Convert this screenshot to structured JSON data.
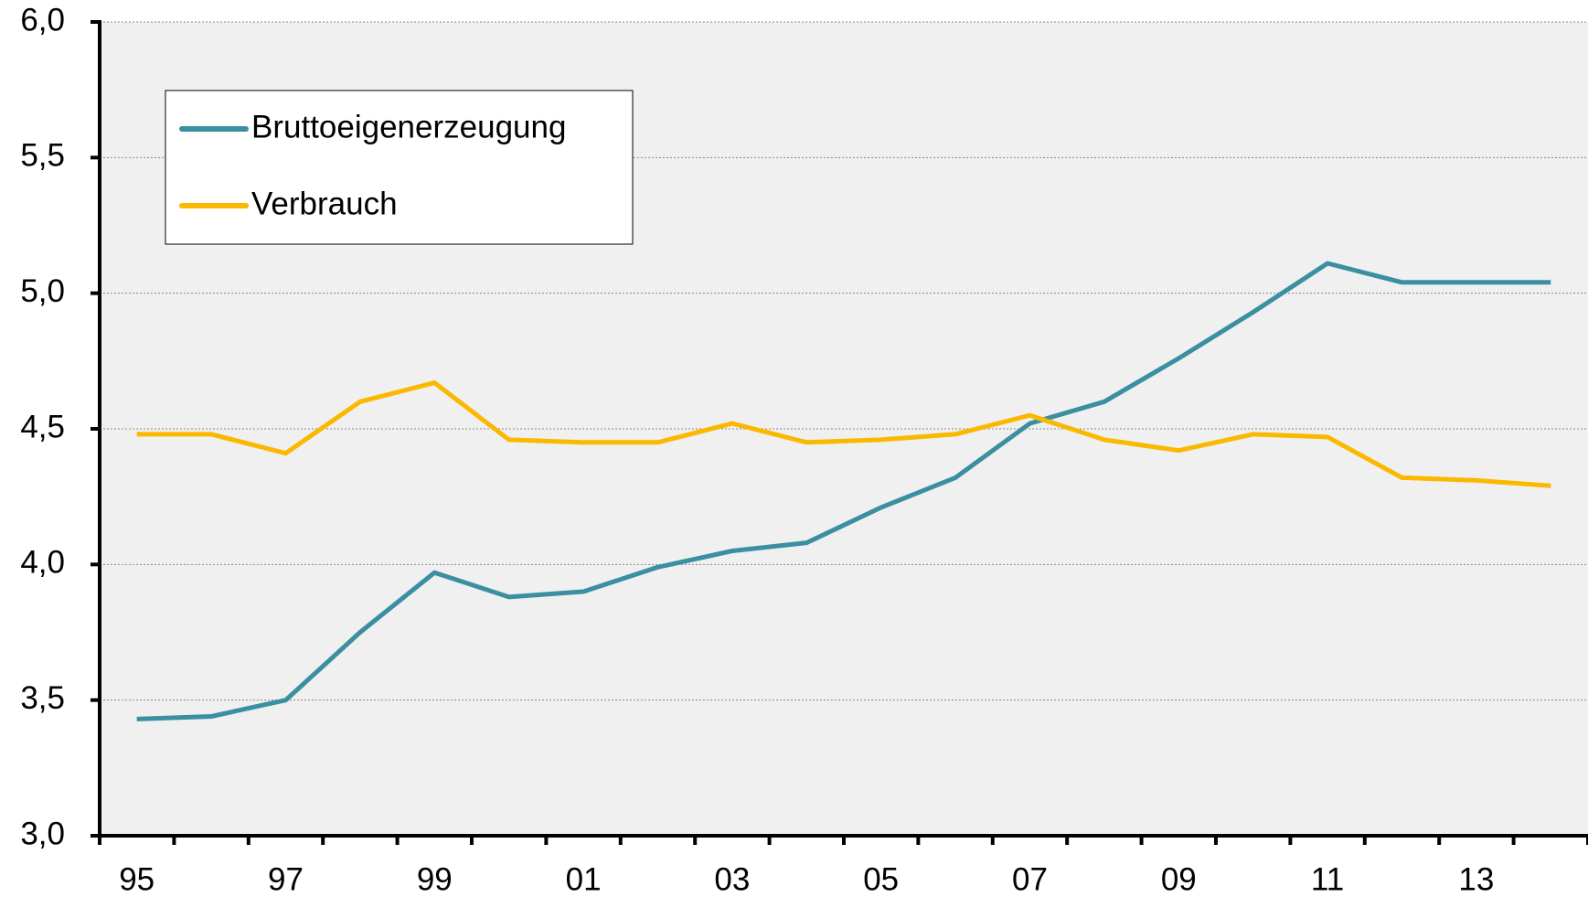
{
  "chart_data": {
    "type": "line",
    "categories": [
      "95",
      null,
      "97",
      null,
      "99",
      null,
      "01",
      null,
      "03",
      null,
      "05",
      null,
      "07",
      null,
      "09",
      null,
      "11",
      null,
      "13",
      null
    ],
    "series": [
      {
        "name": "Bruttoeigenerzeugung",
        "color": "#3a8fa0",
        "values": [
          3.43,
          3.44,
          3.5,
          3.75,
          3.97,
          3.88,
          3.9,
          3.99,
          4.05,
          4.08,
          4.21,
          4.32,
          4.52,
          4.6,
          4.76,
          4.93,
          5.11,
          5.04,
          5.04,
          5.04
        ]
      },
      {
        "name": "Verbrauch",
        "color": "#fbb800",
        "values": [
          4.48,
          4.48,
          4.41,
          4.6,
          4.67,
          4.46,
          4.45,
          4.45,
          4.52,
          4.45,
          4.46,
          4.48,
          4.55,
          4.46,
          4.42,
          4.48,
          4.47,
          4.32,
          4.31,
          4.29
        ]
      }
    ],
    "ylim": [
      3,
      6
    ],
    "yticks": [
      {
        "value": 3,
        "label": "3,0"
      },
      {
        "value": 3.5,
        "label": "3,5"
      },
      {
        "value": 4,
        "label": "4,0"
      },
      {
        "value": 4.5,
        "label": "4,5"
      },
      {
        "value": 5,
        "label": "5,0"
      },
      {
        "value": 5.5,
        "label": "5,5"
      },
      {
        "value": 6,
        "label": "6,0"
      }
    ],
    "grid": true,
    "legend": "upper left"
  }
}
